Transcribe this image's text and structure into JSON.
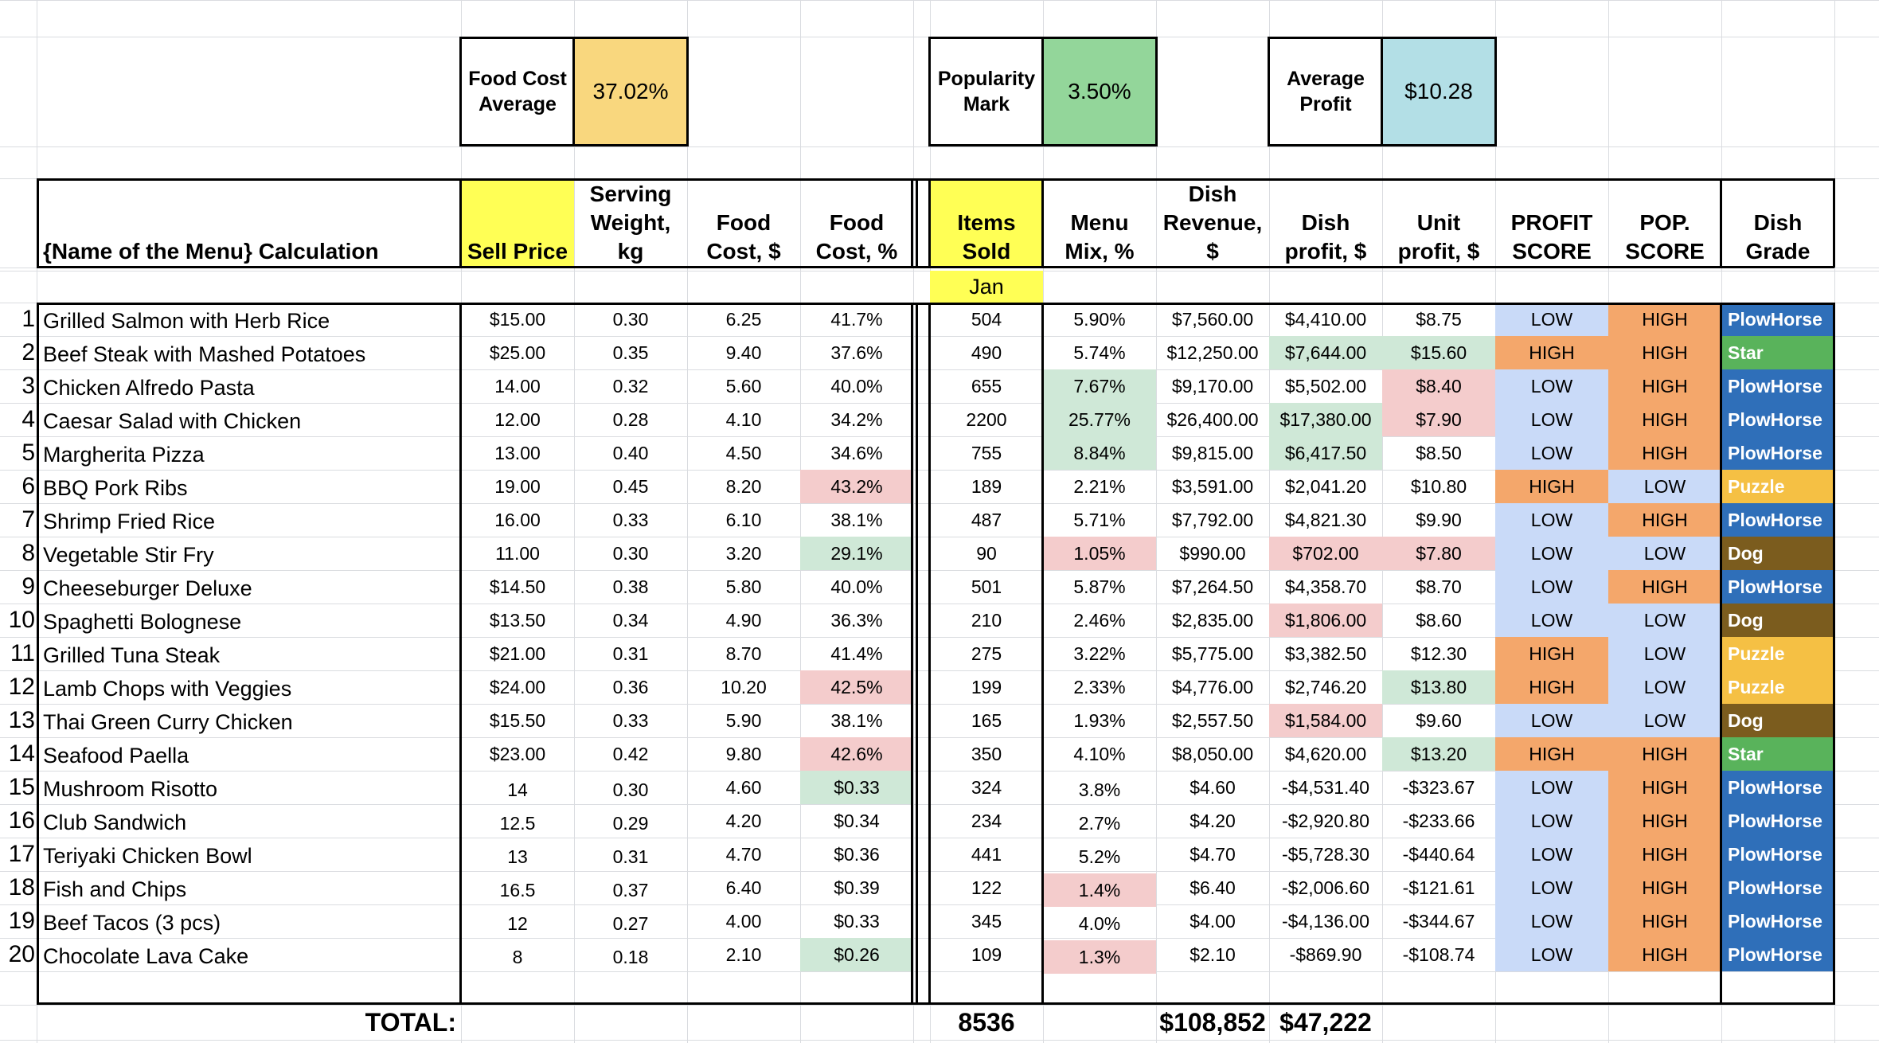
{
  "summary": {
    "food_cost_label": "Food Cost\nAverage",
    "food_cost_value": "37.02%",
    "popularity_label": "Popularity\nMark",
    "popularity_value": "3.50%",
    "profit_label": "Average\nProfit",
    "profit_value": "$10.28"
  },
  "headers": {
    "name": "{Name of the Menu} Calculation",
    "sell_price": "Sell Price",
    "serving_weight": "Serving\nWeight,\nkg",
    "food_cost_usd": "Food\nCost, $",
    "food_cost_pct": "Food\nCost, %",
    "items_sold": "Items\nSold",
    "menu_mix": "Menu\nMix, %",
    "dish_revenue": "Dish\nRevenue,\n$",
    "dish_profit": "Dish\nprofit, $",
    "unit_profit": "Unit\nprofit, $",
    "profit_score": "PROFIT\nSCORE",
    "pop_score": "POP.\nSCORE",
    "dish_grade": "Dish\nGrade",
    "month": "Jan"
  },
  "colors": {
    "yellow": "#ffff55",
    "food_cost_box": "#f9d77e",
    "popularity_box": "#93d69a",
    "profit_box": "#b3dfe6",
    "red_highlight": "#f4cccc",
    "green_highlight": "#cfe8d7",
    "low_score": "#c9daf8",
    "high_score": "#f4a76b",
    "plowhorse": "#2f6fb9",
    "star": "#59b35b",
    "puzzle": "#f5c044",
    "dog": "#7b5c1e"
  },
  "rows": [
    {
      "num": "1",
      "name": "Grilled Salmon with Herb Rice",
      "sell": "$15.00",
      "weight": "0.30",
      "fc": "6.25",
      "fcp": "41.7%",
      "sold": "504",
      "mix": "5.90%",
      "rev": "$7,560.00",
      "dprofit": "$4,410.00",
      "uprofit": "$8.75",
      "pscore": "LOW",
      "popscore": "HIGH",
      "grade": "PlowHorse"
    },
    {
      "num": "2",
      "name": "Beef Steak with Mashed Potatoes",
      "sell": "$25.00",
      "weight": "0.35",
      "fc": "9.40",
      "fcp": "37.6%",
      "sold": "490",
      "mix": "5.74%",
      "rev": "$12,250.00",
      "dprofit": "$7,644.00",
      "uprofit": "$15.60",
      "pscore": "HIGH",
      "popscore": "HIGH",
      "grade": "Star"
    },
    {
      "num": "3",
      "name": "Chicken Alfredo Pasta",
      "sell": "14.00",
      "weight": "0.32",
      "fc": "5.60",
      "fcp": "40.0%",
      "sold": "655",
      "mix": "7.67%",
      "rev": "$9,170.00",
      "dprofit": "$5,502.00",
      "uprofit": "$8.40",
      "pscore": "LOW",
      "popscore": "HIGH",
      "grade": "PlowHorse"
    },
    {
      "num": "4",
      "name": "Caesar Salad with Chicken",
      "sell": "12.00",
      "weight": "0.28",
      "fc": "4.10",
      "fcp": "34.2%",
      "sold": "2200",
      "mix": "25.77%",
      "rev": "$26,400.00",
      "dprofit": "$17,380.00",
      "uprofit": "$7.90",
      "pscore": "LOW",
      "popscore": "HIGH",
      "grade": "PlowHorse"
    },
    {
      "num": "5",
      "name": "Margherita Pizza",
      "sell": "13.00",
      "weight": "0.40",
      "fc": "4.50",
      "fcp": "34.6%",
      "sold": "755",
      "mix": "8.84%",
      "rev": "$9,815.00",
      "dprofit": "$6,417.50",
      "uprofit": "$8.50",
      "pscore": "LOW",
      "popscore": "HIGH",
      "grade": "PlowHorse"
    },
    {
      "num": "6",
      "name": "BBQ Pork Ribs",
      "sell": "19.00",
      "weight": "0.45",
      "fc": "8.20",
      "fcp": "43.2%",
      "sold": "189",
      "mix": "2.21%",
      "rev": "$3,591.00",
      "dprofit": "$2,041.20",
      "uprofit": "$10.80",
      "pscore": "HIGH",
      "popscore": "LOW",
      "grade": "Puzzle"
    },
    {
      "num": "7",
      "name": "Shrimp Fried Rice",
      "sell": "16.00",
      "weight": "0.33",
      "fc": "6.10",
      "fcp": "38.1%",
      "sold": "487",
      "mix": "5.71%",
      "rev": "$7,792.00",
      "dprofit": "$4,821.30",
      "uprofit": "$9.90",
      "pscore": "LOW",
      "popscore": "HIGH",
      "grade": "PlowHorse"
    },
    {
      "num": "8",
      "name": "Vegetable Stir Fry",
      "sell": "11.00",
      "weight": "0.30",
      "fc": "3.20",
      "fcp": "29.1%",
      "sold": "90",
      "mix": "1.05%",
      "rev": "$990.00",
      "dprofit": "$702.00",
      "uprofit": "$7.80",
      "pscore": "LOW",
      "popscore": "LOW",
      "grade": "Dog"
    },
    {
      "num": "9",
      "name": "Cheeseburger Deluxe",
      "sell": "$14.50",
      "weight": "0.38",
      "fc": "5.80",
      "fcp": "40.0%",
      "sold": "501",
      "mix": "5.87%",
      "rev": "$7,264.50",
      "dprofit": "$4,358.70",
      "uprofit": "$8.70",
      "pscore": "LOW",
      "popscore": "HIGH",
      "grade": "PlowHorse"
    },
    {
      "num": "10",
      "name": "Spaghetti Bolognese",
      "sell": "$13.50",
      "weight": "0.34",
      "fc": "4.90",
      "fcp": "36.3%",
      "sold": "210",
      "mix": "2.46%",
      "rev": "$2,835.00",
      "dprofit": "$1,806.00",
      "uprofit": "$8.60",
      "pscore": "LOW",
      "popscore": "LOW",
      "grade": "Dog"
    },
    {
      "num": "11",
      "name": "Grilled Tuna Steak",
      "sell": "$21.00",
      "weight": "0.31",
      "fc": "8.70",
      "fcp": "41.4%",
      "sold": "275",
      "mix": "3.22%",
      "rev": "$5,775.00",
      "dprofit": "$3,382.50",
      "uprofit": "$12.30",
      "pscore": "HIGH",
      "popscore": "LOW",
      "grade": "Puzzle"
    },
    {
      "num": "12",
      "name": "Lamb Chops with Veggies",
      "sell": "$24.00",
      "weight": "0.36",
      "fc": "10.20",
      "fcp": "42.5%",
      "sold": "199",
      "mix": "2.33%",
      "rev": "$4,776.00",
      "dprofit": "$2,746.20",
      "uprofit": "$13.80",
      "pscore": "HIGH",
      "popscore": "LOW",
      "grade": "Puzzle"
    },
    {
      "num": "13",
      "name": "Thai Green Curry Chicken",
      "sell": "$15.50",
      "weight": "0.33",
      "fc": "5.90",
      "fcp": "38.1%",
      "sold": "165",
      "mix": "1.93%",
      "rev": "$2,557.50",
      "dprofit": "$1,584.00",
      "uprofit": "$9.60",
      "pscore": "LOW",
      "popscore": "LOW",
      "grade": "Dog"
    },
    {
      "num": "14",
      "name": "Seafood Paella",
      "sell": "$23.00",
      "weight": "0.42",
      "fc": "9.80",
      "fcp": "42.6%",
      "sold": "350",
      "mix": "4.10%",
      "rev": "$8,050.00",
      "dprofit": "$4,620.00",
      "uprofit": "$13.20",
      "pscore": "HIGH",
      "popscore": "HIGH",
      "grade": "Star"
    },
    {
      "num": "15",
      "name": "Mushroom Risotto",
      "sell": "14",
      "weight": "0.30",
      "fc": "4.60",
      "fcp": "$0.33",
      "sold": "324",
      "mix": "3.8%",
      "rev": "$4.60",
      "dprofit": "-$4,531.40",
      "uprofit": "-$323.67",
      "pscore": "LOW",
      "popscore": "HIGH",
      "grade": "PlowHorse"
    },
    {
      "num": "16",
      "name": "Club Sandwich",
      "sell": "12.5",
      "weight": "0.29",
      "fc": "4.20",
      "fcp": "$0.34",
      "sold": "234",
      "mix": "2.7%",
      "rev": "$4.20",
      "dprofit": "-$2,920.80",
      "uprofit": "-$233.66",
      "pscore": "LOW",
      "popscore": "HIGH",
      "grade": "PlowHorse"
    },
    {
      "num": "17",
      "name": "Teriyaki Chicken Bowl",
      "sell": "13",
      "weight": "0.31",
      "fc": "4.70",
      "fcp": "$0.36",
      "sold": "441",
      "mix": "5.2%",
      "rev": "$4.70",
      "dprofit": "-$5,728.30",
      "uprofit": "-$440.64",
      "pscore": "LOW",
      "popscore": "HIGH",
      "grade": "PlowHorse"
    },
    {
      "num": "18",
      "name": "Fish and Chips",
      "sell": "16.5",
      "weight": "0.37",
      "fc": "6.40",
      "fcp": "$0.39",
      "sold": "122",
      "mix": "1.4%",
      "rev": "$6.40",
      "dprofit": "-$2,006.60",
      "uprofit": "-$121.61",
      "pscore": "LOW",
      "popscore": "HIGH",
      "grade": "PlowHorse"
    },
    {
      "num": "19",
      "name": "Beef Tacos (3 pcs)",
      "sell": "12",
      "weight": "0.27",
      "fc": "4.00",
      "fcp": "$0.33",
      "sold": "345",
      "mix": "4.0%",
      "rev": "$4.00",
      "dprofit": "-$4,136.00",
      "uprofit": "-$344.67",
      "pscore": "LOW",
      "popscore": "HIGH",
      "grade": "PlowHorse"
    },
    {
      "num": "20",
      "name": "Chocolate Lava Cake",
      "sell": "8",
      "weight": "0.18",
      "fc": "2.10",
      "fcp": "$0.26",
      "sold": "109",
      "mix": "1.3%",
      "rev": "$2.10",
      "dprofit": "-$869.90",
      "uprofit": "-$108.74",
      "pscore": "LOW",
      "popscore": "HIGH",
      "grade": "PlowHorse"
    }
  ],
  "totals": {
    "label": "TOTAL:",
    "items_sold": "8536",
    "revenue": "$108,852",
    "profit": "$47,222"
  }
}
